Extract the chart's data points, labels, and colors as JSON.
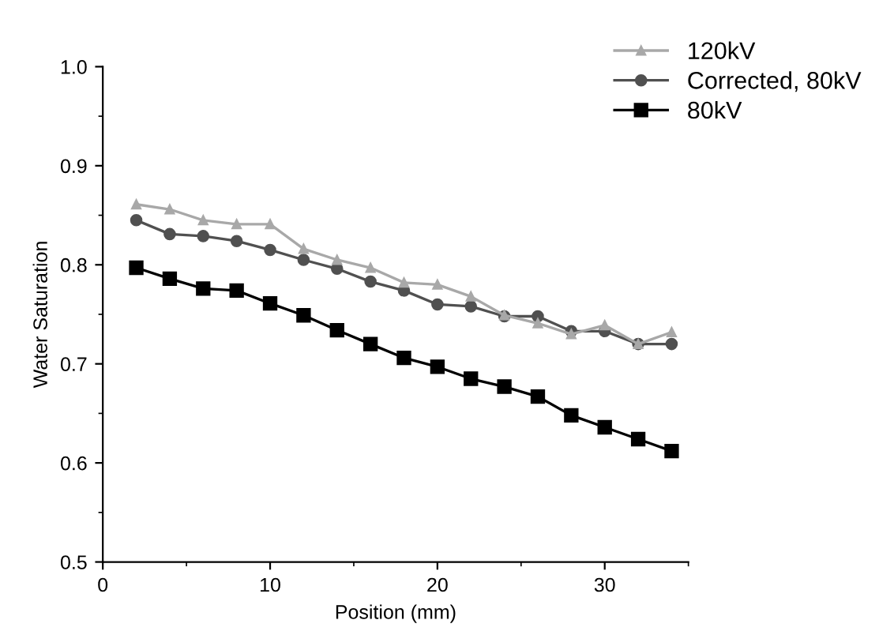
{
  "chart_data": {
    "type": "line",
    "xlabel": "Position (mm)",
    "ylabel": "Water Saturation",
    "x": [
      2,
      4,
      6,
      8,
      10,
      12,
      14,
      16,
      18,
      20,
      22,
      24,
      26,
      28,
      30,
      32,
      34
    ],
    "xlim": [
      0,
      35
    ],
    "xticks": [
      0,
      10,
      20,
      30
    ],
    "ylim": [
      0.5,
      1.0
    ],
    "yticks": [
      {
        "value": 0.5,
        "label": "0.5"
      },
      {
        "value": 0.6,
        "label": "0.6"
      },
      {
        "value": 0.7,
        "label": "0.7"
      },
      {
        "value": 0.8,
        "label": "0.8"
      },
      {
        "value": 0.9,
        "label": "0.9"
      },
      {
        "value": 1.0,
        "label": "1.0"
      }
    ],
    "grid": false,
    "legend": "top right",
    "line_style": "solid",
    "series": [
      {
        "name": "120kV",
        "color": "#a8a8a8",
        "marker": "triangle",
        "values": [
          0.861,
          0.856,
          0.845,
          0.841,
          0.841,
          0.816,
          0.805,
          0.797,
          0.782,
          0.78,
          0.768,
          0.749,
          0.741,
          0.73,
          0.739,
          0.72,
          0.732
        ]
      },
      {
        "name": "Corrected, 80kV",
        "color": "#505050",
        "marker": "circle",
        "values": [
          0.845,
          0.831,
          0.829,
          0.824,
          0.815,
          0.805,
          0.796,
          0.783,
          0.774,
          0.76,
          0.758,
          0.748,
          0.748,
          0.733,
          0.733,
          0.72,
          0.72
        ]
      },
      {
        "name": "80kV",
        "color": "#000000",
        "marker": "square",
        "values": [
          0.797,
          0.786,
          0.776,
          0.774,
          0.761,
          0.749,
          0.734,
          0.72,
          0.706,
          0.697,
          0.685,
          0.677,
          0.667,
          0.648,
          0.636,
          0.624,
          0.612
        ]
      }
    ]
  }
}
